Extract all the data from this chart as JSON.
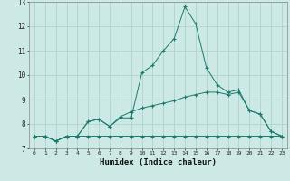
{
  "xlabel": "Humidex (Indice chaleur)",
  "background_color": "#cce9e5",
  "grid_color": "#add4cf",
  "line_color": "#1a7a6e",
  "xlim": [
    -0.5,
    23.5
  ],
  "ylim": [
    7,
    13
  ],
  "yticks": [
    7,
    8,
    9,
    10,
    11,
    12,
    13
  ],
  "xticks": [
    0,
    1,
    2,
    3,
    4,
    5,
    6,
    7,
    8,
    9,
    10,
    11,
    12,
    13,
    14,
    15,
    16,
    17,
    18,
    19,
    20,
    21,
    22,
    23
  ],
  "series": [
    {
      "x": [
        0,
        1,
        2,
        3,
        4,
        5,
        6,
        7,
        8,
        9,
        10,
        11,
        12,
        13,
        14,
        15,
        16,
        17,
        18,
        19,
        20,
        21,
        22,
        23
      ],
      "y": [
        7.5,
        7.5,
        7.3,
        7.5,
        7.5,
        8.1,
        8.2,
        7.9,
        8.25,
        8.25,
        10.1,
        10.4,
        11.0,
        11.5,
        12.8,
        12.1,
        10.3,
        9.6,
        9.3,
        9.4,
        8.55,
        8.4,
        7.7,
        7.5
      ]
    },
    {
      "x": [
        0,
        1,
        2,
        3,
        4,
        5,
        6,
        7,
        8,
        9,
        10,
        11,
        12,
        13,
        14,
        15,
        16,
        17,
        18,
        19,
        20,
        21,
        22,
        23
      ],
      "y": [
        7.5,
        7.5,
        7.3,
        7.5,
        7.5,
        8.1,
        8.2,
        7.9,
        8.3,
        8.5,
        8.65,
        8.75,
        8.85,
        8.95,
        9.1,
        9.2,
        9.3,
        9.3,
        9.2,
        9.3,
        8.55,
        8.4,
        7.7,
        7.5
      ]
    },
    {
      "x": [
        0,
        1,
        2,
        3,
        4,
        5,
        6,
        7,
        8,
        9,
        10,
        11,
        12,
        13,
        14,
        15,
        16,
        17,
        18,
        19,
        20,
        21,
        22,
        23
      ],
      "y": [
        7.5,
        7.5,
        7.3,
        7.5,
        7.5,
        7.5,
        7.5,
        7.5,
        7.5,
        7.5,
        7.5,
        7.5,
        7.5,
        7.5,
        7.5,
        7.5,
        7.5,
        7.5,
        7.5,
        7.5,
        7.5,
        7.5,
        7.5,
        7.5
      ]
    }
  ]
}
